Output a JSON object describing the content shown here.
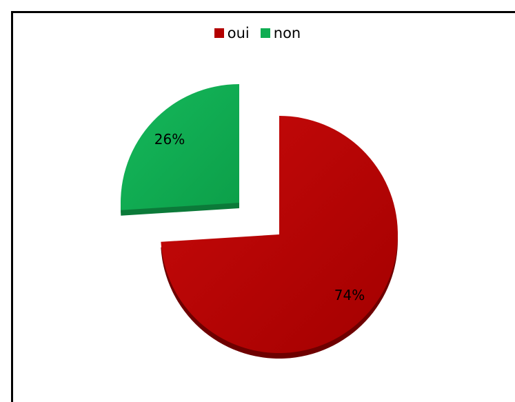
{
  "chart_data": {
    "type": "pie",
    "exploded": true,
    "three_d": true,
    "legend_position": "top",
    "slices": [
      {
        "label": "oui",
        "value": 74,
        "data_label": "74%",
        "color": "#b30000",
        "dark_color": "#6e0000"
      },
      {
        "label": "non",
        "value": 26,
        "data_label": "26%",
        "color": "#0fad52",
        "dark_color": "#0b7a39"
      }
    ]
  }
}
